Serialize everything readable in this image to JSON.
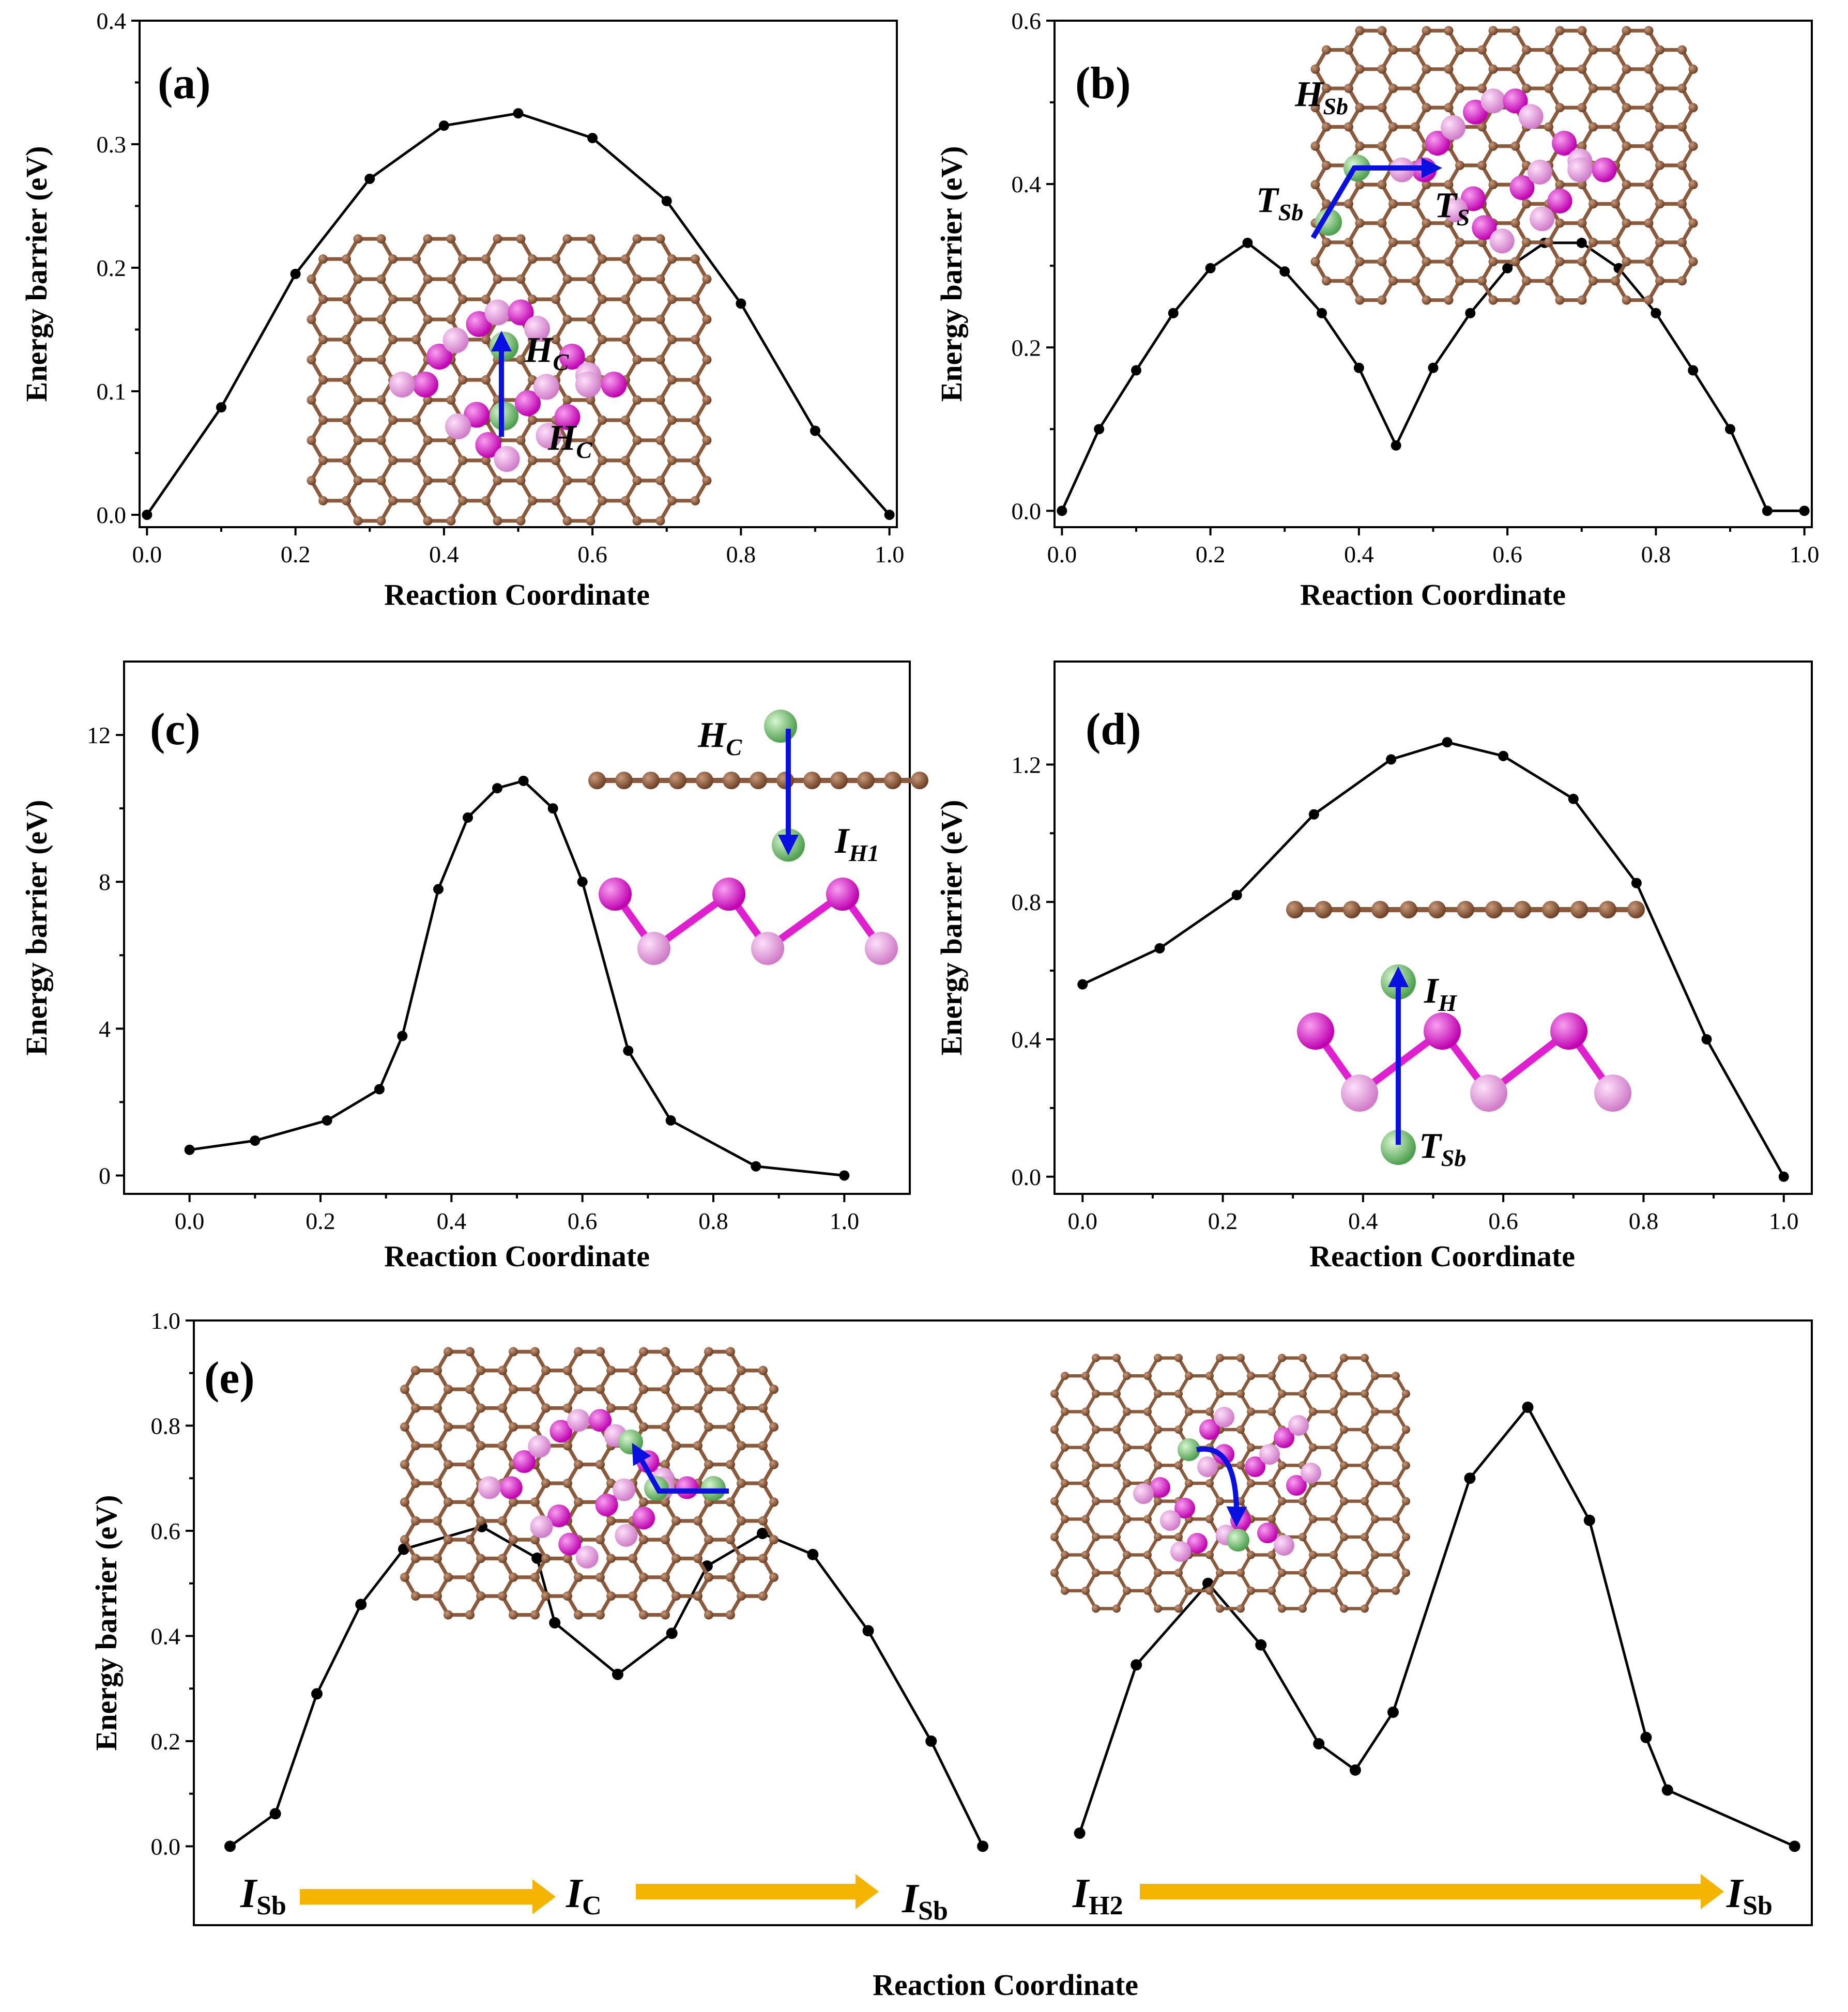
{
  "colors": {
    "carbon": "#8B5A3C",
    "sb_dark": "#E020D0",
    "sb_light": "#F0A0E8",
    "hydrogen": "#80C880",
    "arrow_blue": "#0A10E0",
    "arrow_orange": "#F5B400",
    "line": "#000000"
  },
  "chart_data": [
    {
      "panel": "(a)",
      "type": "line",
      "xlabel": "Reaction Coordinate",
      "ylabel": "Energy barrier (eV)",
      "xlim": [
        -0.01,
        1.01
      ],
      "ylim": [
        -0.01,
        0.4
      ],
      "xticks": [
        "0.0",
        "0.2",
        "0.4",
        "0.6",
        "0.8",
        "1.0"
      ],
      "yticks": [
        "0.0",
        "0.1",
        "0.2",
        "0.3",
        "0.4"
      ],
      "x": [
        0.0,
        0.1,
        0.2,
        0.3,
        0.4,
        0.5,
        0.6,
        0.7,
        0.8,
        0.9,
        1.0
      ],
      "y": [
        0.0,
        0.087,
        0.195,
        0.272,
        0.315,
        0.325,
        0.305,
        0.254,
        0.171,
        0.068,
        0.0
      ],
      "inset_labels": [
        {
          "main": "H",
          "sub": "C"
        },
        {
          "main": "H",
          "sub": "C"
        }
      ]
    },
    {
      "panel": "(b)",
      "type": "line",
      "xlabel": "Reaction Coordinate",
      "ylabel": "Energy barrier (eV)",
      "xlim": [
        -0.01,
        1.01
      ],
      "ylim": [
        -0.02,
        0.6
      ],
      "xticks": [
        "0.0",
        "0.2",
        "0.4",
        "0.6",
        "0.8",
        "1.0"
      ],
      "yticks": [
        "0.0",
        "0.2",
        "0.4",
        "0.6"
      ],
      "x": [
        0.0,
        0.05,
        0.1,
        0.15,
        0.2,
        0.25,
        0.3,
        0.35,
        0.4,
        0.45,
        0.5,
        0.55,
        0.6,
        0.65,
        0.7,
        0.75,
        0.8,
        0.85,
        0.9,
        0.95,
        1.0
      ],
      "y": [
        0.0,
        0.1,
        0.172,
        0.242,
        0.297,
        0.328,
        0.293,
        0.242,
        0.175,
        0.08,
        0.175,
        0.242,
        0.297,
        0.328,
        0.328,
        0.297,
        0.242,
        0.172,
        0.1,
        0.0,
        0.0
      ],
      "inset_labels": [
        {
          "main": "H",
          "sub": "Sb"
        },
        {
          "main": "T",
          "sub": "Sb"
        },
        {
          "main": "T",
          "sub": "S"
        }
      ]
    },
    {
      "panel": "(c)",
      "type": "line",
      "xlabel": "Reaction Coordinate",
      "ylabel": "Energy barrier (eV)",
      "xlim": [
        -0.1,
        1.1
      ],
      "ylim": [
        -0.5,
        14
      ],
      "xticks": [
        "0.0",
        "0.2",
        "0.4",
        "0.6",
        "0.8",
        "1.0"
      ],
      "yticks": [
        "0",
        "4",
        "8",
        "12"
      ],
      "x": [
        0.0,
        0.1,
        0.21,
        0.29,
        0.325,
        0.38,
        0.425,
        0.47,
        0.51,
        0.555,
        0.6,
        0.67,
        0.735,
        0.865,
        1.0
      ],
      "y": [
        0.7,
        0.95,
        1.5,
        2.35,
        3.8,
        7.8,
        9.75,
        10.55,
        10.75,
        10.0,
        8.0,
        3.4,
        1.5,
        0.25,
        0.0
      ],
      "inset_labels": [
        {
          "main": "H",
          "sub": "C"
        },
        {
          "main": "I",
          "sub": "H1"
        }
      ]
    },
    {
      "panel": "(d)",
      "type": "line",
      "xlabel": "Reaction Coordinate",
      "ylabel": "Energy barrier (eV)",
      "xlim": [
        -0.04,
        1.04
      ],
      "ylim": [
        -0.05,
        1.5
      ],
      "xticks": [
        "0.0",
        "0.2",
        "0.4",
        "0.6",
        "0.8",
        "1.0"
      ],
      "yticks": [
        "0.0",
        "0.4",
        "0.8",
        "1.2"
      ],
      "x": [
        0.0,
        0.11,
        0.22,
        0.33,
        0.44,
        0.52,
        0.6,
        0.7,
        0.79,
        0.89,
        1.0
      ],
      "y": [
        0.56,
        0.665,
        0.82,
        1.055,
        1.215,
        1.265,
        1.225,
        1.1,
        0.855,
        0.4,
        0.0
      ],
      "inset_labels": [
        {
          "main": "I",
          "sub": "H"
        },
        {
          "main": "T",
          "sub": "Sb"
        }
      ]
    },
    {
      "panel": "(e)",
      "type": "line",
      "xlabel": "Reaction Coordinate",
      "ylabel": "Energy barrier (eV)",
      "ylim": [
        -0.15,
        1.0
      ],
      "yticks": [
        "0.0",
        "0.2",
        "0.4",
        "0.6",
        "0.8",
        "1.0"
      ],
      "series": [
        {
          "name": "I_Sb -> I_C -> I_Sb",
          "x": [
            0.0,
            0.036,
            0.069,
            0.104,
            0.138,
            0.2,
            0.244,
            0.258,
            0.308,
            0.351,
            0.379,
            0.423,
            0.463,
            0.507,
            0.557,
            0.598
          ],
          "y": [
            0.0,
            0.062,
            0.29,
            0.46,
            0.565,
            0.608,
            0.548,
            0.425,
            0.327,
            0.405,
            0.533,
            0.595,
            0.555,
            0.41,
            0.2,
            0.0
          ]
        },
        {
          "name": "I_H2 -> I_Sb",
          "x": [
            0.675,
            0.72,
            0.777,
            0.819,
            0.865,
            0.894,
            0.924,
            0.985,
            1.031,
            1.08,
            1.125,
            1.142,
            1.243
          ],
          "y": [
            0.025,
            0.345,
            0.5,
            0.383,
            0.195,
            0.145,
            0.255,
            0.7,
            0.835,
            0.62,
            0.207,
            0.107,
            0.0
          ]
        }
      ],
      "pathway_labels": [
        {
          "main": "I",
          "sub": "Sb"
        },
        {
          "main": "I",
          "sub": "C"
        },
        {
          "main": "I",
          "sub": "Sb"
        },
        {
          "main": "I",
          "sub": "H2"
        },
        {
          "main": "I",
          "sub": "Sb"
        }
      ]
    }
  ]
}
